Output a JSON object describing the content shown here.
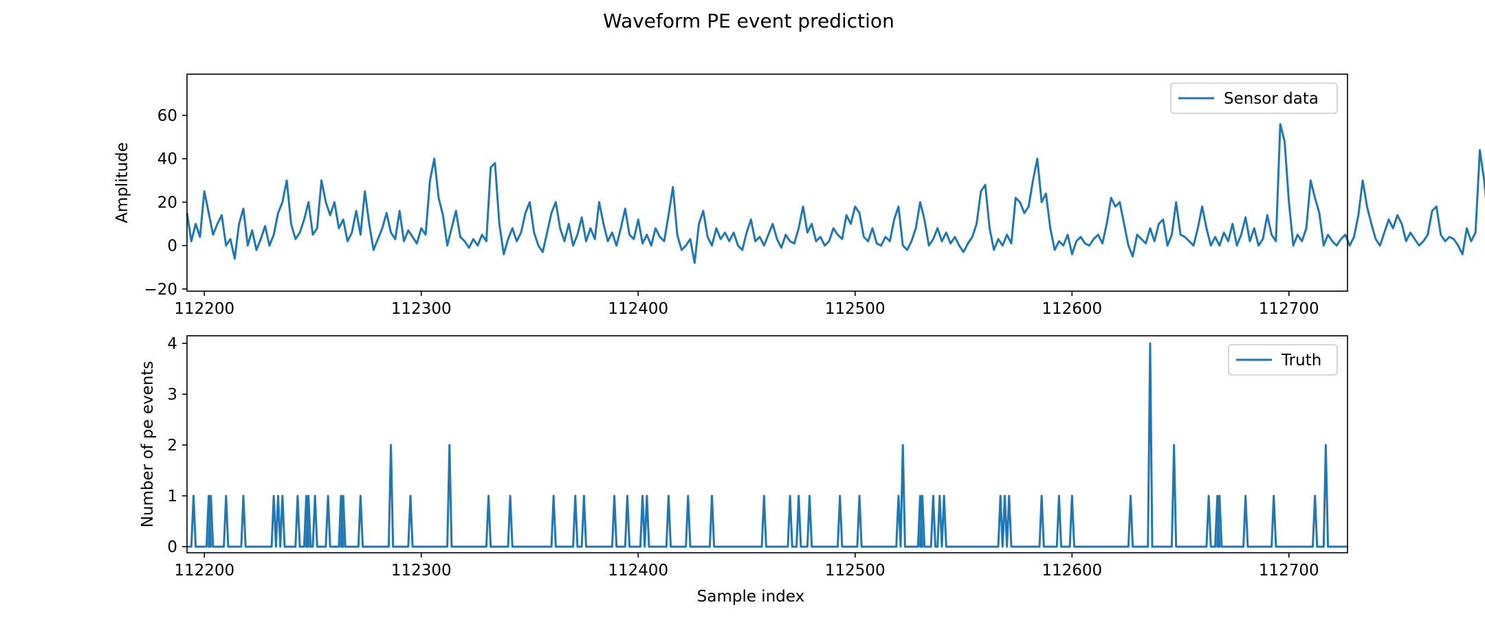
{
  "figure_title": "Waveform PE event prediction",
  "line_color": "#1f77b4",
  "chart_data": [
    {
      "type": "line",
      "title": "",
      "xlabel": "",
      "ylabel": "Amplitude",
      "xlim": [
        112192,
        112727
      ],
      "ylim": [
        -21,
        79
      ],
      "x_ticks": [
        112200,
        112300,
        112400,
        112500,
        112600,
        112700
      ],
      "y_ticks": [
        -20,
        0,
        20,
        40,
        60
      ],
      "grid": false,
      "legend_position": "top-right",
      "series": [
        {
          "name": "Sensor data",
          "x_start": 112192,
          "x_step": 2,
          "values": [
            15,
            2,
            10,
            4,
            25,
            15,
            5,
            10,
            14,
            0,
            3,
            -6,
            10,
            17,
            0,
            7,
            -2,
            3,
            9,
            0,
            5,
            15,
            20,
            30,
            10,
            3,
            6,
            12,
            20,
            5,
            8,
            30,
            20,
            14,
            20,
            8,
            12,
            2,
            6,
            16,
            5,
            25,
            10,
            -2,
            3,
            8,
            15,
            6,
            3,
            16,
            2,
            7,
            4,
            1,
            8,
            5,
            30,
            40,
            22,
            14,
            0,
            8,
            16,
            4,
            2,
            -1,
            3,
            0,
            5,
            2,
            36,
            38,
            10,
            -4,
            3,
            8,
            2,
            6,
            15,
            20,
            6,
            0,
            -3,
            6,
            15,
            20,
            8,
            2,
            10,
            0,
            5,
            13,
            2,
            8,
            3,
            20,
            10,
            2,
            6,
            0,
            8,
            17,
            5,
            3,
            12,
            1,
            5,
            0,
            8,
            4,
            2,
            14,
            27,
            5,
            -2,
            0,
            3,
            -8,
            10,
            16,
            4,
            0,
            8,
            3,
            6,
            2,
            6,
            0,
            -2,
            6,
            12,
            2,
            4,
            0,
            5,
            10,
            3,
            -1,
            5,
            2,
            1,
            8,
            18,
            6,
            10,
            2,
            4,
            0,
            2,
            8,
            5,
            3,
            14,
            10,
            18,
            15,
            4,
            2,
            8,
            1,
            0,
            4,
            2,
            12,
            18,
            0,
            -2,
            2,
            8,
            20,
            12,
            0,
            3,
            8,
            2,
            6,
            1,
            4,
            0,
            -3,
            1,
            4,
            10,
            25,
            28,
            8,
            -2,
            3,
            0,
            5,
            1,
            22,
            20,
            15,
            18,
            30,
            40,
            20,
            24,
            8,
            -2,
            2,
            0,
            5,
            -4,
            2,
            4,
            1,
            0,
            3,
            5,
            1,
            10,
            22,
            18,
            20,
            10,
            0,
            -5,
            5,
            3,
            1,
            8,
            2,
            10,
            12,
            0,
            5,
            20,
            5,
            4,
            2,
            0,
            8,
            18,
            8,
            0,
            4,
            0,
            6,
            2,
            10,
            0,
            5,
            13,
            2,
            8,
            0,
            3,
            14,
            5,
            2,
            56,
            48,
            20,
            0,
            5,
            2,
            8,
            30,
            22,
            15,
            0,
            5,
            2,
            0,
            3,
            5,
            0,
            4,
            14,
            30,
            18,
            10,
            3,
            0,
            6,
            12,
            8,
            14,
            10,
            2,
            6,
            3,
            0,
            2,
            5,
            16,
            18,
            5,
            2,
            4,
            3,
            0,
            -4,
            8,
            2,
            6,
            44,
            30,
            10,
            3,
            0,
            4,
            2,
            1,
            3,
            0
          ]
        }
      ]
    },
    {
      "type": "line",
      "title": "",
      "xlabel": "Sample index",
      "ylabel": "Number of pe events",
      "xlim": [
        112192,
        112727
      ],
      "ylim": [
        -0.12,
        4.15
      ],
      "x_ticks": [
        112200,
        112300,
        112400,
        112500,
        112600,
        112700
      ],
      "y_ticks": [
        0,
        1,
        2,
        3,
        4
      ],
      "grid": false,
      "legend_position": "top-right",
      "series": [
        {
          "name": "Truth",
          "x_range": [
            112192,
            112727
          ],
          "spikes": [
            [
              112195,
              1
            ],
            [
              112202,
              1
            ],
            [
              112203,
              1
            ],
            [
              112210,
              1
            ],
            [
              112218,
              1
            ],
            [
              112232,
              1
            ],
            [
              112234,
              1
            ],
            [
              112236,
              1
            ],
            [
              112243,
              1
            ],
            [
              112247,
              1
            ],
            [
              112248,
              1
            ],
            [
              112251,
              1
            ],
            [
              112257,
              1
            ],
            [
              112263,
              1
            ],
            [
              112264,
              1
            ],
            [
              112272,
              1
            ],
            [
              112286,
              2
            ],
            [
              112295,
              1
            ],
            [
              112313,
              2
            ],
            [
              112331,
              1
            ],
            [
              112341,
              1
            ],
            [
              112361,
              1
            ],
            [
              112371,
              1
            ],
            [
              112375,
              1
            ],
            [
              112389,
              1
            ],
            [
              112395,
              1
            ],
            [
              112402,
              1
            ],
            [
              112404,
              1
            ],
            [
              112414,
              1
            ],
            [
              112423,
              1
            ],
            [
              112434,
              1
            ],
            [
              112458,
              1
            ],
            [
              112470,
              1
            ],
            [
              112474,
              1
            ],
            [
              112479,
              1
            ],
            [
              112493,
              1
            ],
            [
              112502,
              1
            ],
            [
              112520,
              1
            ],
            [
              112522,
              2
            ],
            [
              112530,
              1
            ],
            [
              112531,
              1
            ],
            [
              112536,
              1
            ],
            [
              112539,
              1
            ],
            [
              112541,
              1
            ],
            [
              112567,
              1
            ],
            [
              112569,
              1
            ],
            [
              112571,
              1
            ],
            [
              112586,
              1
            ],
            [
              112594,
              1
            ],
            [
              112600,
              1
            ],
            [
              112627,
              1
            ],
            [
              112636,
              4
            ],
            [
              112647,
              2
            ],
            [
              112663,
              1
            ],
            [
              112667,
              1
            ],
            [
              112668,
              1
            ],
            [
              112680,
              1
            ],
            [
              112693,
              1
            ],
            [
              112712,
              1
            ],
            [
              112717,
              2
            ]
          ]
        }
      ]
    }
  ]
}
